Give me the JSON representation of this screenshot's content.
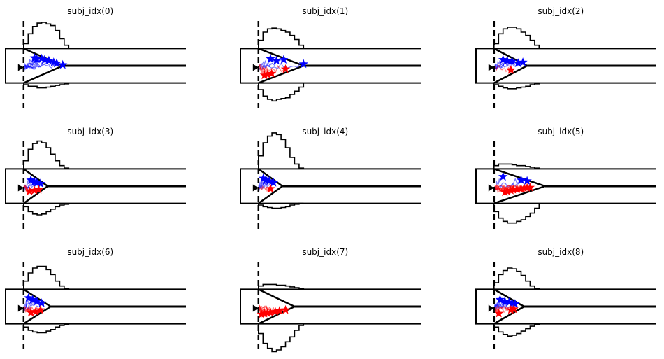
{
  "figure": {
    "panels": [
      {
        "title": "subj_idx(0)"
      },
      {
        "title": "subj_idx(1)"
      },
      {
        "title": "subj_idx(2)"
      },
      {
        "title": "subj_idx(3)"
      },
      {
        "title": "subj_idx(4)"
      },
      {
        "title": "subj_idx(5)"
      },
      {
        "title": "subj_idx(6)"
      },
      {
        "title": "subj_idx(7)"
      },
      {
        "title": "subj_idx(8)"
      }
    ]
  },
  "colors": {
    "upper": "#0000ff",
    "lower": "#ff0000",
    "bound": "#000000",
    "line": "#000000"
  },
  "chart_data": {
    "type": "line",
    "layout": "3x3 small multiples",
    "x_range": [
      -0.3,
      2.7
    ],
    "y_range": [
      -2.6,
      2.6
    ],
    "axes_visible": false,
    "vertical_dashed_line_x": 0.0,
    "histogram_baseline_upper": 1.0,
    "histogram_baseline_lower": -1.0,
    "panels": [
      {
        "title": "subj_idx(0)",
        "start_point": -0.1,
        "bound_end_x": 0.65,
        "upper_endpoints": [
          [
            0.18,
            0.45
          ],
          [
            0.22,
            0.38
          ],
          [
            0.3,
            0.42
          ],
          [
            0.35,
            0.35
          ],
          [
            0.42,
            0.3
          ],
          [
            0.5,
            0.2
          ],
          [
            0.55,
            0.15
          ],
          [
            0.65,
            0.05
          ]
        ],
        "lower_endpoints": [],
        "upper_hist": [
          0.3,
          0.9,
          1.35,
          1.55,
          1.6,
          1.5,
          1.4,
          1.1,
          0.6,
          0.2
        ],
        "lower_hist": [
          0.1,
          0.2,
          0.2,
          0.3,
          0.3,
          0.25,
          0.2,
          0.15,
          0.1,
          0.05
        ]
      },
      {
        "title": "subj_idx(1)",
        "start_point": -0.1,
        "bound_end_x": 0.75,
        "upper_endpoints": [
          [
            0.2,
            0.4
          ],
          [
            0.3,
            0.3
          ],
          [
            0.42,
            0.35
          ],
          [
            0.75,
            0.1
          ]
        ],
        "lower_endpoints": [
          [
            0.1,
            -0.55
          ],
          [
            0.15,
            -0.5
          ],
          [
            0.22,
            -0.45
          ],
          [
            0.45,
            -0.2
          ]
        ],
        "upper_hist": [
          0.5,
          1.0,
          1.2,
          1.25,
          1.2,
          1.1,
          1.0,
          0.8,
          0.55,
          0.2
        ],
        "lower_hist": [
          0.4,
          0.8,
          1.0,
          1.1,
          1.0,
          0.95,
          0.9,
          0.7,
          0.5,
          0.25
        ]
      },
      {
        "title": "subj_idx(2)",
        "start_point": -0.1,
        "bound_end_x": 0.55,
        "upper_endpoints": [
          [
            0.15,
            0.35
          ],
          [
            0.22,
            0.3
          ],
          [
            0.3,
            0.25
          ],
          [
            0.4,
            0.15
          ],
          [
            0.48,
            0.2
          ]
        ],
        "lower_endpoints": [
          [
            0.28,
            -0.25
          ]
        ],
        "upper_hist": [
          0.3,
          0.9,
          1.2,
          1.3,
          1.3,
          1.2,
          1.0,
          0.8,
          0.5,
          0.2
        ],
        "lower_hist": [
          0.1,
          0.2,
          0.3,
          0.35,
          0.35,
          0.3,
          0.25,
          0.2,
          0.1,
          0.05
        ]
      },
      {
        "title": "subj_idx(3)",
        "start_point": -0.1,
        "bound_end_x": 0.4,
        "upper_endpoints": [
          [
            0.12,
            0.35
          ],
          [
            0.18,
            0.25
          ],
          [
            0.22,
            0.2
          ],
          [
            0.28,
            0.15
          ]
        ],
        "lower_endpoints": [
          [
            0.1,
            -0.3
          ],
          [
            0.18,
            -0.25
          ],
          [
            0.25,
            -0.2
          ]
        ],
        "upper_hist": [
          0.5,
          1.2,
          1.55,
          1.7,
          1.6,
          1.3,
          0.9,
          0.5,
          0.2,
          0.05
        ],
        "lower_hist": [
          0.2,
          0.5,
          0.65,
          0.7,
          0.65,
          0.5,
          0.35,
          0.2,
          0.1,
          0.05
        ]
      },
      {
        "title": "subj_idx(4)",
        "start_point": -0.1,
        "bound_end_x": 0.4,
        "upper_endpoints": [
          [
            0.08,
            0.45
          ],
          [
            0.12,
            0.35
          ],
          [
            0.18,
            0.3
          ],
          [
            0.25,
            0.2
          ]
        ],
        "lower_endpoints": [
          [
            0.2,
            -0.15
          ]
        ],
        "upper_hist": [
          0.8,
          1.6,
          2.0,
          2.2,
          2.1,
          1.8,
          1.3,
          0.7,
          0.3,
          0.05
        ],
        "lower_hist": [
          0.1,
          0.2,
          0.25,
          0.3,
          0.3,
          0.25,
          0.2,
          0.1,
          0.05,
          0.0
        ]
      },
      {
        "title": "subj_idx(5)",
        "start_point": -0.1,
        "bound_end_x": 0.85,
        "upper_endpoints": [
          [
            0.15,
            0.55
          ],
          [
            0.45,
            0.35
          ],
          [
            0.55,
            0.3
          ]
        ],
        "lower_endpoints": [
          [
            0.18,
            -0.35
          ],
          [
            0.22,
            -0.3
          ],
          [
            0.28,
            -0.25
          ],
          [
            0.32,
            -0.2
          ],
          [
            0.38,
            -0.18
          ],
          [
            0.45,
            -0.15
          ],
          [
            0.5,
            -0.12
          ],
          [
            0.55,
            -0.1
          ],
          [
            0.6,
            -0.08
          ]
        ],
        "upper_hist": [
          0.2,
          0.3,
          0.3,
          0.3,
          0.25,
          0.2,
          0.2,
          0.15,
          0.1,
          0.05
        ],
        "lower_hist": [
          0.5,
          0.9,
          1.1,
          1.2,
          1.2,
          1.1,
          1.0,
          0.8,
          0.6,
          0.3
        ]
      },
      {
        "title": "subj_idx(6)",
        "start_point": -0.1,
        "bound_end_x": 0.45,
        "upper_endpoints": [
          [
            0.08,
            0.5
          ],
          [
            0.15,
            0.4
          ],
          [
            0.22,
            0.3
          ],
          [
            0.3,
            0.2
          ]
        ],
        "lower_endpoints": [
          [
            0.12,
            -0.35
          ],
          [
            0.2,
            -0.3
          ],
          [
            0.28,
            -0.2
          ]
        ],
        "upper_hist": [
          0.5,
          1.0,
          1.3,
          1.4,
          1.4,
          1.2,
          0.9,
          0.5,
          0.2,
          0.05
        ],
        "lower_hist": [
          0.2,
          0.4,
          0.5,
          0.55,
          0.55,
          0.45,
          0.35,
          0.2,
          0.1,
          0.05
        ]
      },
      {
        "title": "subj_idx(7)",
        "start_point": -0.1,
        "bound_end_x": 0.6,
        "upper_endpoints": [],
        "lower_endpoints": [
          [
            0.05,
            -0.45
          ],
          [
            0.1,
            -0.4
          ],
          [
            0.15,
            -0.38
          ],
          [
            0.2,
            -0.35
          ],
          [
            0.28,
            -0.3
          ],
          [
            0.35,
            -0.25
          ],
          [
            0.45,
            -0.2
          ]
        ],
        "upper_hist": [
          0.2,
          0.3,
          0.3,
          0.3,
          0.25,
          0.25,
          0.2,
          0.15,
          0.1,
          0.05
        ],
        "lower_hist": [
          0.6,
          1.2,
          1.5,
          1.7,
          1.6,
          1.4,
          1.1,
          0.8,
          0.4,
          0.1
        ]
      },
      {
        "title": "subj_idx(8)",
        "start_point": -0.1,
        "bound_end_x": 0.5,
        "upper_endpoints": [
          [
            0.1,
            0.4
          ],
          [
            0.18,
            0.3
          ],
          [
            0.25,
            0.25
          ],
          [
            0.3,
            0.2
          ],
          [
            0.35,
            0.15
          ]
        ],
        "lower_endpoints": [
          [
            0.08,
            -0.4
          ],
          [
            0.28,
            -0.2
          ],
          [
            0.33,
            -0.15
          ]
        ],
        "upper_hist": [
          0.4,
          0.9,
          1.15,
          1.3,
          1.25,
          1.1,
          0.85,
          0.5,
          0.2,
          0.05
        ],
        "lower_hist": [
          0.2,
          0.5,
          0.65,
          0.75,
          0.7,
          0.6,
          0.45,
          0.3,
          0.15,
          0.05
        ]
      }
    ]
  }
}
